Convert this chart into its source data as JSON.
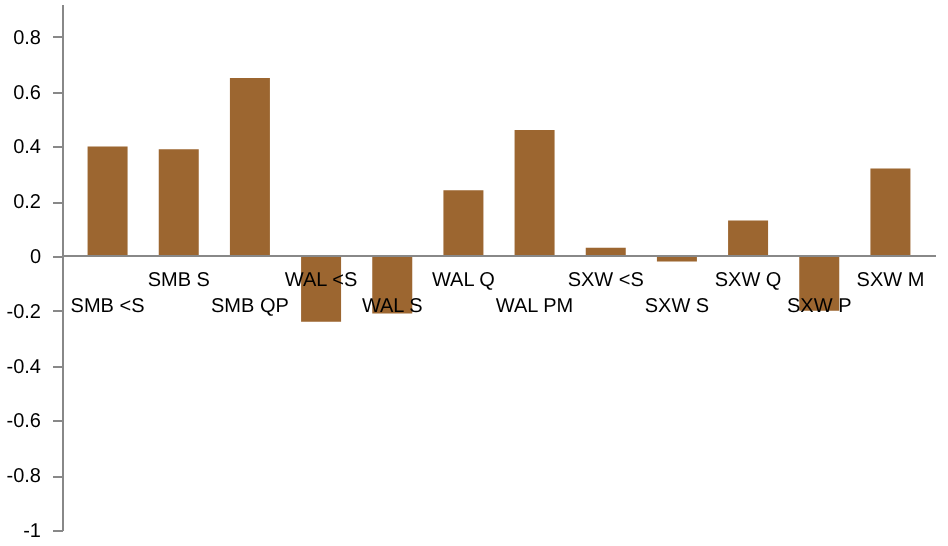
{
  "chart_data": {
    "type": "bar",
    "categories": [
      "SMB <S",
      "SMB S",
      "SMB QP",
      "WAL <S",
      "WAL S",
      "WAL Q",
      "WAL PM",
      "SXW <S",
      "SXW S",
      "SXW Q",
      "SXW P",
      "SXW M"
    ],
    "values": [
      0.4,
      0.39,
      0.65,
      -0.24,
      -0.21,
      0.24,
      0.46,
      0.03,
      -0.02,
      0.13,
      -0.2,
      0.32
    ],
    "color": "#9c6630",
    "ylim": [
      -1,
      0.92
    ],
    "yticks": [
      -1,
      -0.8,
      -0.6,
      -0.4,
      -0.2,
      0,
      0.2,
      0.4,
      0.6,
      0.8
    ],
    "grid": false
  }
}
